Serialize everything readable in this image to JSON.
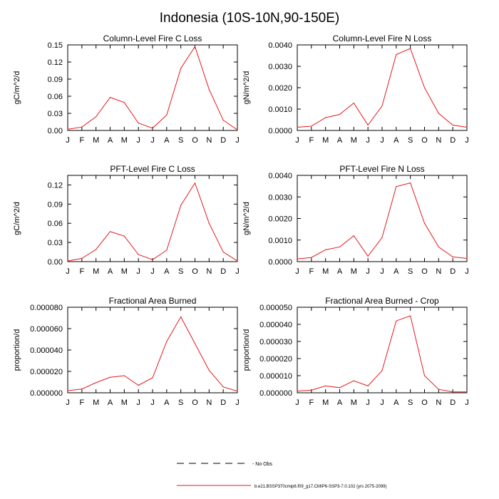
{
  "figure": {
    "title": "Indonesia (10S-10N,90-150E)"
  },
  "colors": {
    "series_line": "#e41a1c",
    "axes": "#000000",
    "background": "#ffffff"
  },
  "legend": [
    {
      "label": "- No Obs",
      "style": "dashed",
      "color": "#000000"
    },
    {
      "label": "b.e21.BSSP370cmip6.f09_g17.CMIP6-SSP3-7.0.102 (yrs 2075-2099)",
      "style": "solid",
      "color": "#e41a1c"
    }
  ],
  "chart_data": [
    {
      "type": "line",
      "title": "Column-Level Fire C Loss",
      "ylabel": "gC/m^2/d",
      "categories": [
        "J",
        "F",
        "M",
        "A",
        "M",
        "J",
        "J",
        "A",
        "S",
        "O",
        "N",
        "D",
        "J"
      ],
      "ylim": [
        0,
        0.15
      ],
      "yticks": [
        "0.00",
        "0.03",
        "0.06",
        "0.09",
        "0.12",
        "0.15"
      ],
      "ytick_values": [
        0,
        0.03,
        0.06,
        0.09,
        0.12,
        0.15
      ],
      "series": [
        {
          "values": [
            0.002,
            0.006,
            0.024,
            0.058,
            0.049,
            0.013,
            0.004,
            0.027,
            0.109,
            0.147,
            0.072,
            0.018,
            0.001
          ]
        }
      ]
    },
    {
      "type": "line",
      "title": "Column-Level Fire N Loss",
      "ylabel": "gN/m^2/d",
      "categories": [
        "J",
        "F",
        "M",
        "A",
        "M",
        "J",
        "J",
        "A",
        "S",
        "O",
        "N",
        "D",
        "J"
      ],
      "ylim": [
        0,
        0.004
      ],
      "yticks": [
        "0.0000",
        "0.0010",
        "0.0020",
        "0.0030",
        "0.0040"
      ],
      "ytick_values": [
        0,
        0.001,
        0.002,
        0.003,
        0.004
      ],
      "series": [
        {
          "values": [
            0.00015,
            0.0002,
            0.0006,
            0.00075,
            0.00128,
            0.00025,
            0.00115,
            0.00355,
            0.00383,
            0.002,
            0.0008,
            0.00025,
            0.00015
          ]
        }
      ]
    },
    {
      "type": "line",
      "title": "PFT-Level Fire C Loss",
      "ylabel": "gC/m^2/d",
      "categories": [
        "J",
        "F",
        "M",
        "A",
        "M",
        "J",
        "J",
        "A",
        "S",
        "O",
        "N",
        "D",
        "J"
      ],
      "ylim": [
        0,
        0.135
      ],
      "yticks": [
        "0.00",
        "0.03",
        "0.06",
        "0.09",
        "0.12"
      ],
      "ytick_values": [
        0,
        0.03,
        0.06,
        0.09,
        0.12
      ],
      "series": [
        {
          "values": [
            0.001,
            0.005,
            0.019,
            0.047,
            0.04,
            0.011,
            0.003,
            0.018,
            0.088,
            0.123,
            0.06,
            0.015,
            0.001
          ]
        }
      ]
    },
    {
      "type": "line",
      "title": "PFT-Level Fire N Loss",
      "ylabel": "gN/m^2/d",
      "categories": [
        "J",
        "F",
        "M",
        "A",
        "M",
        "J",
        "J",
        "A",
        "S",
        "O",
        "N",
        "D",
        "J"
      ],
      "ylim": [
        0,
        0.004
      ],
      "yticks": [
        "0.0000",
        "0.0010",
        "0.0020",
        "0.0030",
        "0.0040"
      ],
      "ytick_values": [
        0,
        0.001,
        0.002,
        0.003,
        0.004
      ],
      "series": [
        {
          "values": [
            0.00013,
            0.00019,
            0.00055,
            0.00068,
            0.0012,
            0.00025,
            0.00112,
            0.00348,
            0.00365,
            0.00178,
            0.00068,
            0.00022,
            0.00015
          ]
        }
      ]
    },
    {
      "type": "line",
      "title": "Fractional Area Burned",
      "ylabel": "proportion/d",
      "categories": [
        "J",
        "F",
        "M",
        "A",
        "M",
        "J",
        "J",
        "A",
        "S",
        "O",
        "N",
        "D",
        "J"
      ],
      "ylim": [
        0,
        8e-05
      ],
      "yticks": [
        "0.000000",
        "0.000020",
        "0.000040",
        "0.000060",
        "0.000080"
      ],
      "ytick_values": [
        0,
        2e-05,
        4e-05,
        6e-05,
        8e-05
      ],
      "series": [
        {
          "values": [
            2e-06,
            3.5e-06,
            9.5e-06,
            1.45e-05,
            1.6e-05,
            7e-06,
            1.4e-05,
            4.8e-05,
            7.1e-05,
            4.6e-05,
            2.1e-05,
            5.5e-06,
            1.5e-06
          ]
        }
      ]
    },
    {
      "type": "line",
      "title": "Fractional Area Burned - Crop",
      "ylabel": "proportion/d",
      "categories": [
        "J",
        "F",
        "M",
        "A",
        "M",
        "J",
        "J",
        "A",
        "S",
        "O",
        "N",
        "D",
        "J"
      ],
      "ylim": [
        0,
        5e-05
      ],
      "yticks": [
        "0.000000",
        "0.000010",
        "0.000020",
        "0.000030",
        "0.000040",
        "0.000050"
      ],
      "ytick_values": [
        0,
        1e-05,
        2e-05,
        3e-05,
        4e-05,
        5e-05
      ],
      "series": [
        {
          "values": [
            1e-06,
            1.5e-06,
            4e-06,
            3e-06,
            7e-06,
            4e-06,
            1.3e-05,
            4.2e-05,
            4.5e-05,
            1e-05,
            2e-06,
            5e-07,
            5e-07
          ]
        }
      ]
    }
  ]
}
